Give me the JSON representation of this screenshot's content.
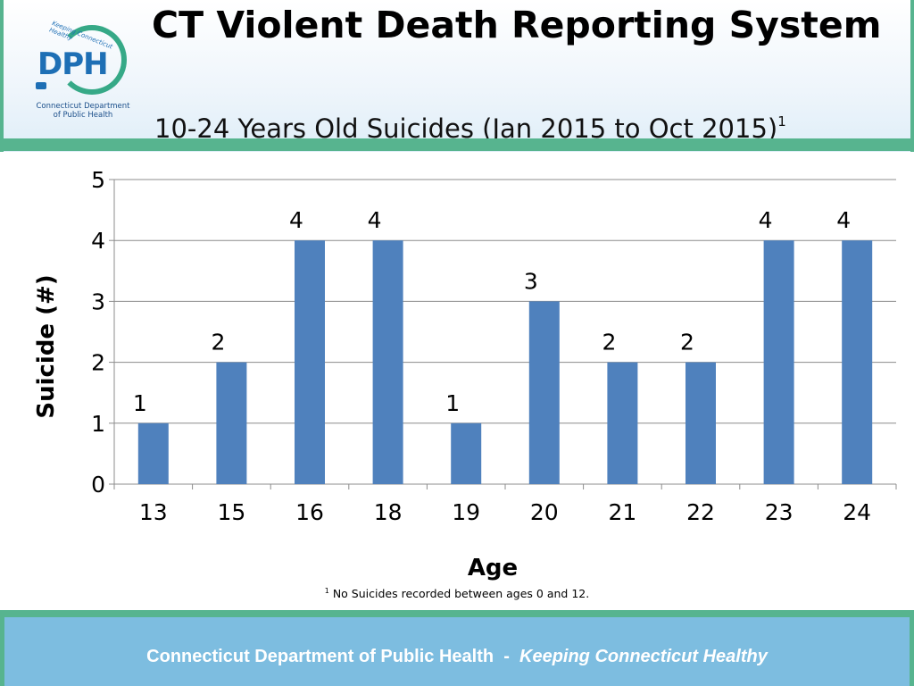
{
  "header": {
    "title": "CT Violent Death Reporting System",
    "subtitle": "10-24 Years Old Suicides (Jan 2015 to Oct 2015)",
    "subtitle_sup": "1",
    "logo": {
      "letters": "DPH",
      "arc_text": "Keeping Connecticut Healthy",
      "dept_line1": "Connecticut Department",
      "dept_line2": "of Public Health"
    }
  },
  "chart_data": {
    "type": "bar",
    "title": "",
    "xlabel": "Age",
    "ylabel": "Suicide (#)",
    "categories": [
      "13",
      "15",
      "16",
      "18",
      "19",
      "20",
      "21",
      "22",
      "23",
      "24"
    ],
    "values": [
      1,
      2,
      4,
      4,
      1,
      3,
      2,
      2,
      4,
      4
    ],
    "ylim": [
      0,
      5
    ],
    "yticks": [
      "0",
      "1",
      "2",
      "3",
      "4",
      "5"
    ],
    "grid": true,
    "legend": "none",
    "data_labels": true,
    "bar_color": "#4f81bd"
  },
  "footnote": {
    "sup": "1",
    "text": " No Suicides recorded between ages 0 and 12."
  },
  "footer": {
    "org": "Connecticut Department of Public Health",
    "separator": "  -  ",
    "tagline": "Keeping Connecticut Healthy"
  },
  "colors": {
    "accent_green": "#57b48f",
    "footer_blue": "#7dbde0",
    "logo_blue": "#1e6fb5",
    "bar_blue": "#4f81bd"
  }
}
